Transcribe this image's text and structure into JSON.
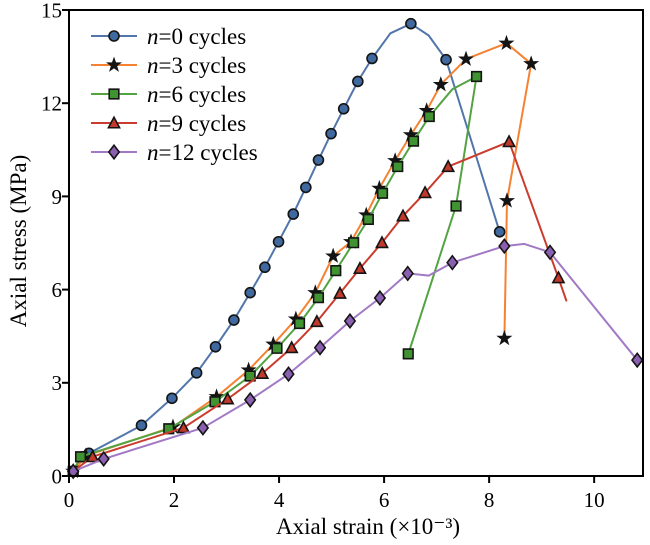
{
  "figure": {
    "background": "#ffffff",
    "frame_color": "#000000",
    "tick_label_color": "#000000"
  },
  "chart_data": {
    "type": "line",
    "title": "",
    "xlabel": "Axial strain (×10⁻³)",
    "ylabel": "Axial stress (MPa)",
    "xlim": [
      0,
      10.93
    ],
    "ylim": [
      0,
      15
    ],
    "xticks": [
      0,
      2,
      4,
      6,
      8,
      10
    ],
    "yticks": [
      0,
      3,
      6,
      9,
      12,
      15
    ],
    "grid": false,
    "legend_position": "top-left",
    "series": [
      {
        "name": "n=0 cycles",
        "marker": "circle",
        "line_color": "#5276aa",
        "marker_fill": "#40699f",
        "marker_edge": "#141414",
        "x": [
          0.08,
          0.25,
          0.38,
          1.38,
          1.96,
          2.43,
          2.79,
          3.14,
          3.45,
          3.73,
          3.99,
          4.27,
          4.51,
          4.75,
          4.99,
          5.23,
          5.5,
          5.77,
          6.12,
          6.51,
          6.85,
          7.18,
          8.2
        ],
        "y": [
          0.15,
          0.62,
          0.73,
          1.63,
          2.5,
          3.32,
          4.16,
          5.02,
          5.9,
          6.72,
          7.54,
          8.43,
          9.29,
          10.17,
          11.02,
          11.82,
          12.7,
          13.44,
          14.25,
          14.56,
          14.18,
          13.4,
          7.86
        ],
        "line_only_idx": [
          18,
          20
        ]
      },
      {
        "name": "n=3 cycles",
        "marker": "star",
        "line_color": "#f58233",
        "marker_fill": "#141414",
        "marker_edge": "#141414",
        "x": [
          0.08,
          0.32,
          1.98,
          2.81,
          3.42,
          3.89,
          4.32,
          4.69,
          5.03,
          5.37,
          5.66,
          5.91,
          6.21,
          6.51,
          6.81,
          7.08,
          7.56,
          8.33,
          8.8,
          8.34,
          8.29
        ],
        "y": [
          0.15,
          0.65,
          1.58,
          2.55,
          3.41,
          4.24,
          5.05,
          5.9,
          7.08,
          7.54,
          8.4,
          9.26,
          10.15,
          10.98,
          11.76,
          12.6,
          13.42,
          13.93,
          13.27,
          8.86,
          4.43
        ],
        "line_only_idx": []
      },
      {
        "name": "n=6 cycles",
        "marker": "square",
        "line_color": "#53a342",
        "marker_fill": "#3f9330",
        "marker_edge": "#141414",
        "x": [
          0.08,
          0.22,
          1.9,
          2.78,
          3.45,
          3.96,
          4.39,
          4.75,
          5.08,
          5.42,
          5.7,
          5.97,
          6.26,
          6.56,
          6.86,
          7.3,
          7.76,
          7.37,
          6.46
        ],
        "y": [
          0.15,
          0.62,
          1.52,
          2.39,
          3.22,
          4.11,
          4.91,
          5.74,
          6.61,
          7.51,
          8.26,
          9.1,
          9.96,
          10.78,
          11.57,
          12.45,
          12.86,
          8.69,
          3.93
        ],
        "line_only_idx": [
          15
        ]
      },
      {
        "name": "n=9 cycles",
        "marker": "triangle",
        "line_color": "#ca3c2d",
        "marker_fill": "#c0392b",
        "marker_edge": "#141414",
        "x": [
          0.08,
          0.45,
          2.18,
          3.02,
          3.68,
          4.24,
          4.72,
          5.16,
          5.54,
          5.96,
          6.36,
          6.78,
          7.22,
          8.38,
          9.32,
          9.47
        ],
        "y": [
          0.15,
          0.62,
          1.55,
          2.48,
          3.3,
          4.13,
          4.97,
          5.88,
          6.68,
          7.51,
          8.37,
          9.12,
          9.96,
          10.76,
          6.38,
          5.65
        ],
        "line_only_idx": [
          15
        ]
      },
      {
        "name": "n=12 cycles",
        "marker": "diamond",
        "line_color": "#a179c5",
        "marker_fill": "#8a5fb0",
        "marker_edge": "#141414",
        "x": [
          0.08,
          0.66,
          2.55,
          3.45,
          4.18,
          4.78,
          5.35,
          5.92,
          6.45,
          6.85,
          7.3,
          8.29,
          8.67,
          9.16,
          10.82
        ],
        "y": [
          0.15,
          0.55,
          1.55,
          2.45,
          3.28,
          4.13,
          4.99,
          5.73,
          6.52,
          6.45,
          6.87,
          7.4,
          7.47,
          7.2,
          3.73
        ],
        "line_only_idx": [
          9,
          12
        ]
      }
    ]
  }
}
